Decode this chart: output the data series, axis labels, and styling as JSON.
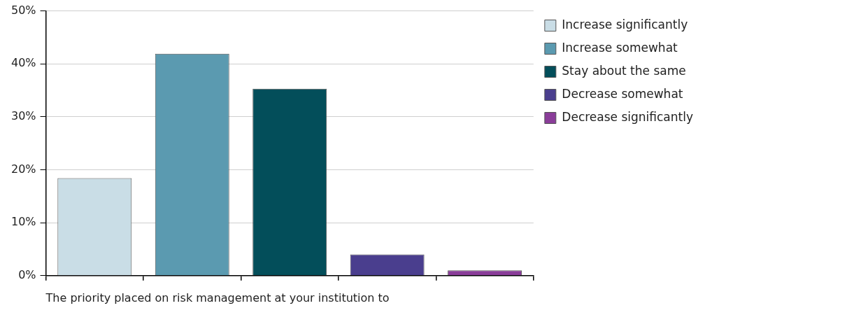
{
  "chart_data": {
    "type": "bar",
    "xlabel": "The priority placed on risk management at your institution to",
    "categories": [
      null,
      null,
      null,
      null,
      null
    ],
    "series": [
      {
        "name": "Increase significantly",
        "color": "#c9dde6",
        "values": [
          18.4,
          null,
          null,
          null,
          null
        ]
      },
      {
        "name": "Increase somewhat",
        "color": "#5b9ab0",
        "values": [
          null,
          41.9,
          null,
          null,
          null
        ]
      },
      {
        "name": "Stay about the same",
        "color": "#034e5a",
        "values": [
          null,
          null,
          35.3,
          null,
          null
        ]
      },
      {
        "name": "Decrease somewhat",
        "color": "#4a3e8e",
        "values": [
          null,
          null,
          null,
          4.0,
          null
        ]
      },
      {
        "name": "Decrease significantly",
        "color": "#8a3d99",
        "values": [
          null,
          null,
          null,
          null,
          1.0
        ]
      }
    ],
    "ylim": [
      0,
      50
    ],
    "yticks": [
      {
        "value": 0,
        "label": "0%"
      },
      {
        "value": 10,
        "label": "10%"
      },
      {
        "value": 20,
        "label": "20%"
      },
      {
        "value": 30,
        "label": "30%"
      },
      {
        "value": 40,
        "label": "40%"
      },
      {
        "value": 50,
        "label": "50%"
      }
    ],
    "grid": "y",
    "legend": "right",
    "tick_labels": "y"
  }
}
